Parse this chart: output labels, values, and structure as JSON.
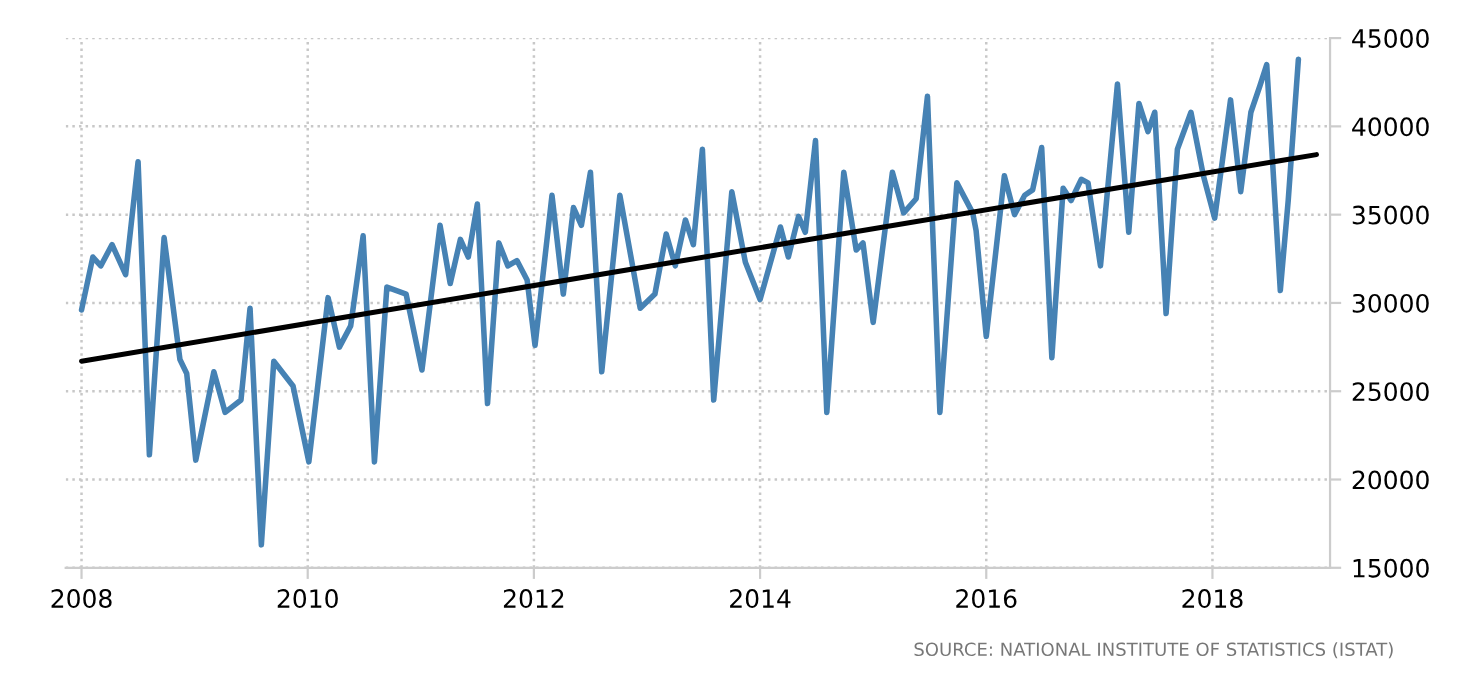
{
  "chart_data": {
    "type": "line",
    "series": [
      {
        "color": "#4682b4",
        "x": [
          2008.0,
          2008.1,
          2008.17,
          2008.27,
          2008.39,
          2008.5,
          2008.6,
          2008.73,
          2008.87,
          2008.93,
          2009.01,
          2009.17,
          2009.27,
          2009.41,
          2009.49,
          2009.59,
          2009.7,
          2009.87,
          2010.01,
          2010.18,
          2010.28,
          2010.38,
          2010.49,
          2010.59,
          2010.7,
          2010.87,
          2011.01,
          2011.17,
          2011.26,
          2011.35,
          2011.42,
          2011.5,
          2011.59,
          2011.69,
          2011.77,
          2011.85,
          2011.94,
          2012.01,
          2012.16,
          2012.26,
          2012.35,
          2012.42,
          2012.5,
          2012.6,
          2012.76,
          2012.94,
          2013.07,
          2013.17,
          2013.25,
          2013.34,
          2013.41,
          2013.49,
          2013.59,
          2013.75,
          2013.87,
          2014.0,
          2014.18,
          2014.25,
          2014.34,
          2014.4,
          2014.49,
          2014.59,
          2014.74,
          2014.85,
          2014.91,
          2015.0,
          2015.17,
          2015.27,
          2015.38,
          2015.48,
          2015.59,
          2015.74,
          2015.88,
          2015.91,
          2016.0,
          2016.16,
          2016.25,
          2016.34,
          2016.41,
          2016.49,
          2016.58,
          2016.68,
          2016.75,
          2016.84,
          2016.9,
          2017.01,
          2017.16,
          2017.26,
          2017.35,
          2017.43,
          2017.49,
          2017.59,
          2017.69,
          2017.81,
          2017.92,
          2018.02,
          2018.16,
          2018.25,
          2018.34,
          2018.42,
          2018.48,
          2018.6,
          2018.67,
          2018.76
        ],
        "values": [
          29600,
          32600,
          32100,
          33300,
          31600,
          38000,
          21400,
          33700,
          26800,
          26000,
          21100,
          26100,
          23800,
          24500,
          29700,
          16300,
          26700,
          25300,
          21000,
          30300,
          27500,
          28700,
          33800,
          21000,
          30900,
          30500,
          26200,
          34400,
          31100,
          33600,
          32600,
          35600,
          24300,
          33400,
          32100,
          32400,
          31300,
          27600,
          36100,
          30500,
          35400,
          34400,
          37400,
          26100,
          36100,
          29700,
          30500,
          33900,
          32100,
          34700,
          33300,
          38700,
          24500,
          36300,
          32300,
          30200,
          34300,
          32600,
          34900,
          34000,
          39200,
          23800,
          37400,
          33000,
          33400,
          28900,
          37400,
          35100,
          35900,
          41700,
          23800,
          36800,
          35100,
          34100,
          28100,
          37200,
          35000,
          36100,
          36400,
          38800,
          26900,
          36500,
          35800,
          37000,
          36800,
          32100,
          42400,
          34000,
          41300,
          39700,
          40800,
          29400,
          38700,
          40800,
          37200,
          34800,
          41500,
          36300,
          40800,
          42300,
          43500,
          30700,
          35800,
          43800
        ]
      },
      {
        "color": "#000000",
        "x": [
          2008.0,
          2018.92
        ],
        "values": [
          26700,
          38400
        ]
      }
    ],
    "xlim": [
      2007.86,
      2019.04
    ],
    "xticks": [
      2008,
      2010,
      2012,
      2014,
      2016,
      2018
    ],
    "ylim": [
      15000,
      45000
    ],
    "yticks": [
      15000,
      20000,
      25000,
      30000,
      35000,
      40000,
      45000
    ],
    "grid": true,
    "line_style": "solid",
    "marker": "none",
    "annotations": [
      "SOURCE: NATIONAL INSTITUTE OF STATISTICS (ISTAT)"
    ]
  }
}
